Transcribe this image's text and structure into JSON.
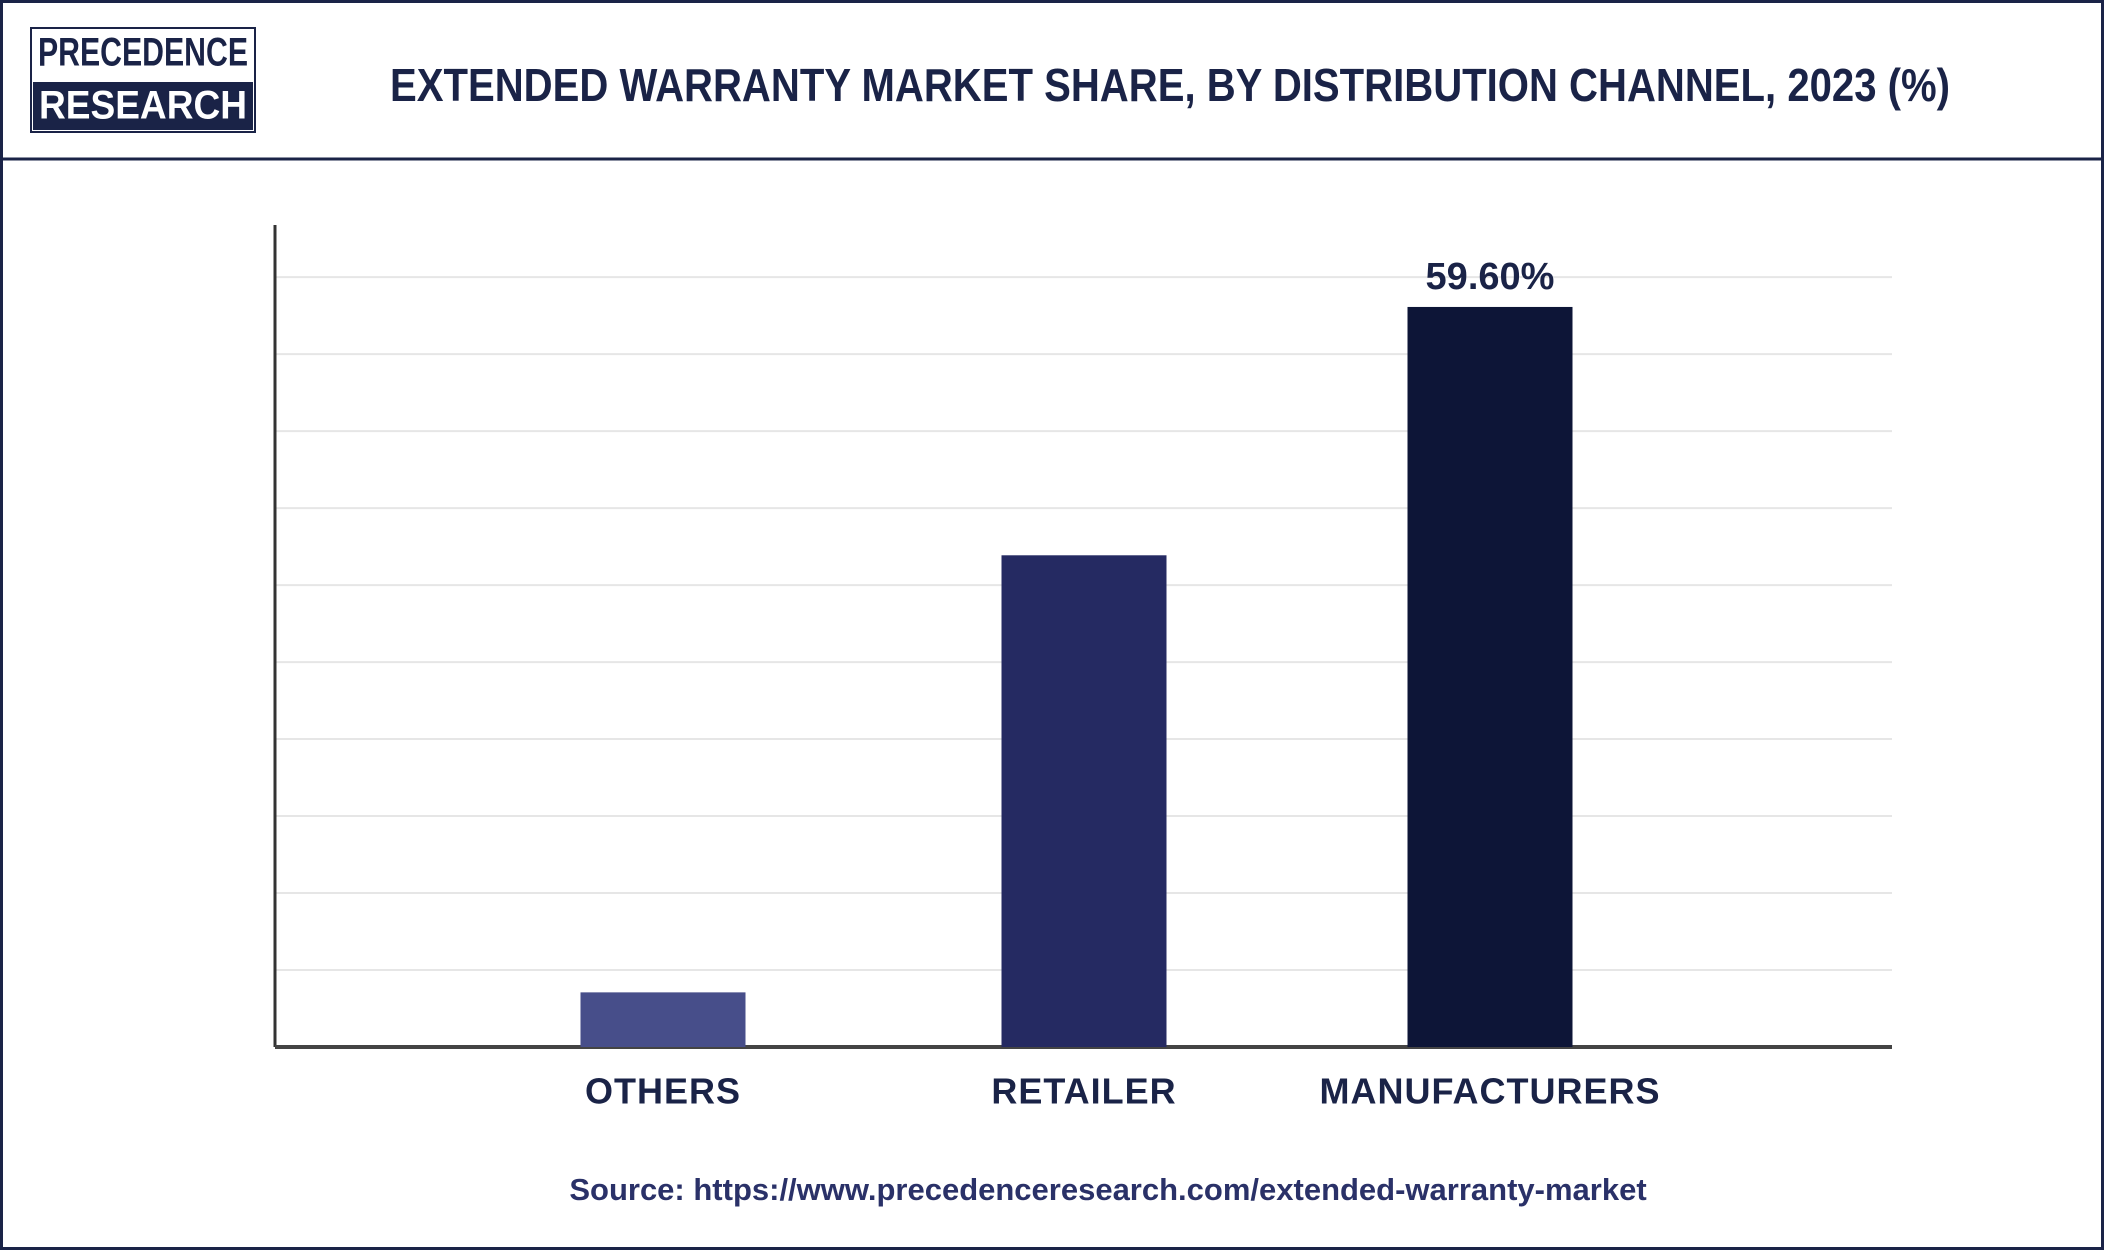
{
  "logo": {
    "line1": "PRECEDENCE",
    "line2": "RESEARCH"
  },
  "chart_data": {
    "type": "bar",
    "title": "EXTENDED WARRANTY MARKET SHARE, BY DISTRIBUTION CHANNEL, 2023 (%)",
    "categories": [
      "OTHERS",
      "RETAILER",
      "MANUFACTURERS"
    ],
    "values": [
      4.4,
      39.6,
      59.6
    ],
    "value_labels": [
      null,
      null,
      "59.60%"
    ],
    "colors": [
      "#474e8a",
      "#252a62",
      "#0d1537"
    ],
    "ylim": [
      0,
      66.2
    ],
    "yticks": [
      6.2,
      12.4,
      18.6,
      24.8,
      31.0,
      37.2,
      43.4,
      49.6,
      55.8,
      62.0
    ],
    "grid": true,
    "source": "Source: https://www.precedenceresearch.com/extended-warranty-market"
  }
}
